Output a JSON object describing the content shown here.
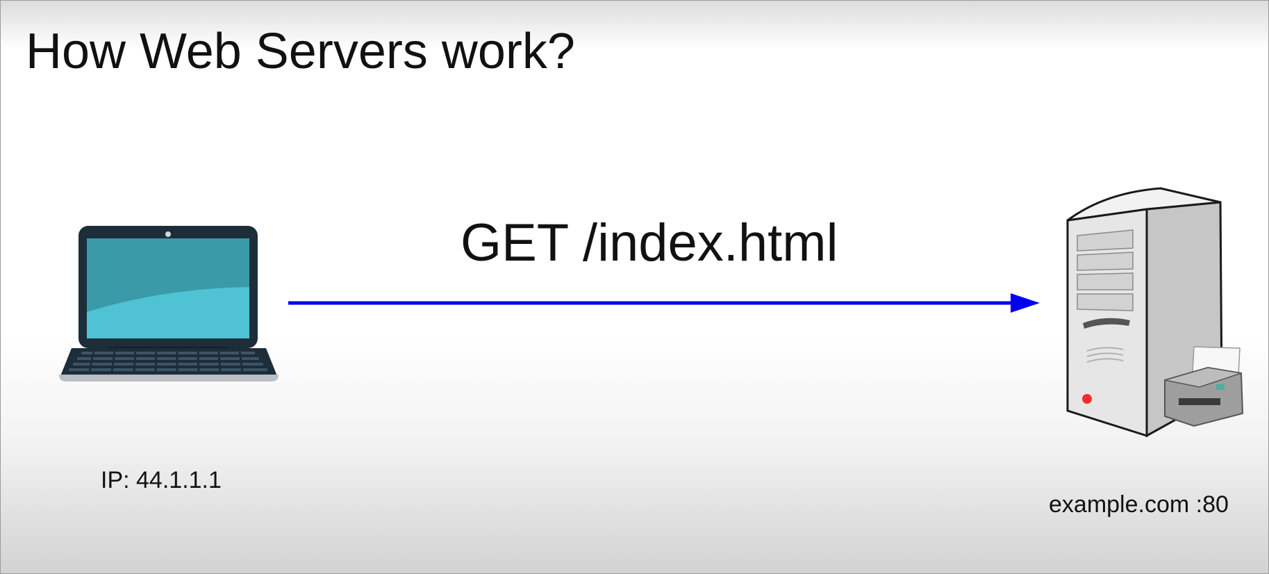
{
  "slide": {
    "title": "How Web Servers work?",
    "request_label": "GET /index.html",
    "client": {
      "label": "IP: 44.1.1.1",
      "icon": "laptop-icon"
    },
    "server": {
      "label": "example.com :80",
      "icon": "server-tower-icon"
    }
  },
  "colors": {
    "arrow": "#0000ee",
    "laptop_body": "#1e2d3a",
    "screen": "#4fc3d3",
    "server_body": "#d4d4d4",
    "power_led": "#ff2a2a"
  }
}
